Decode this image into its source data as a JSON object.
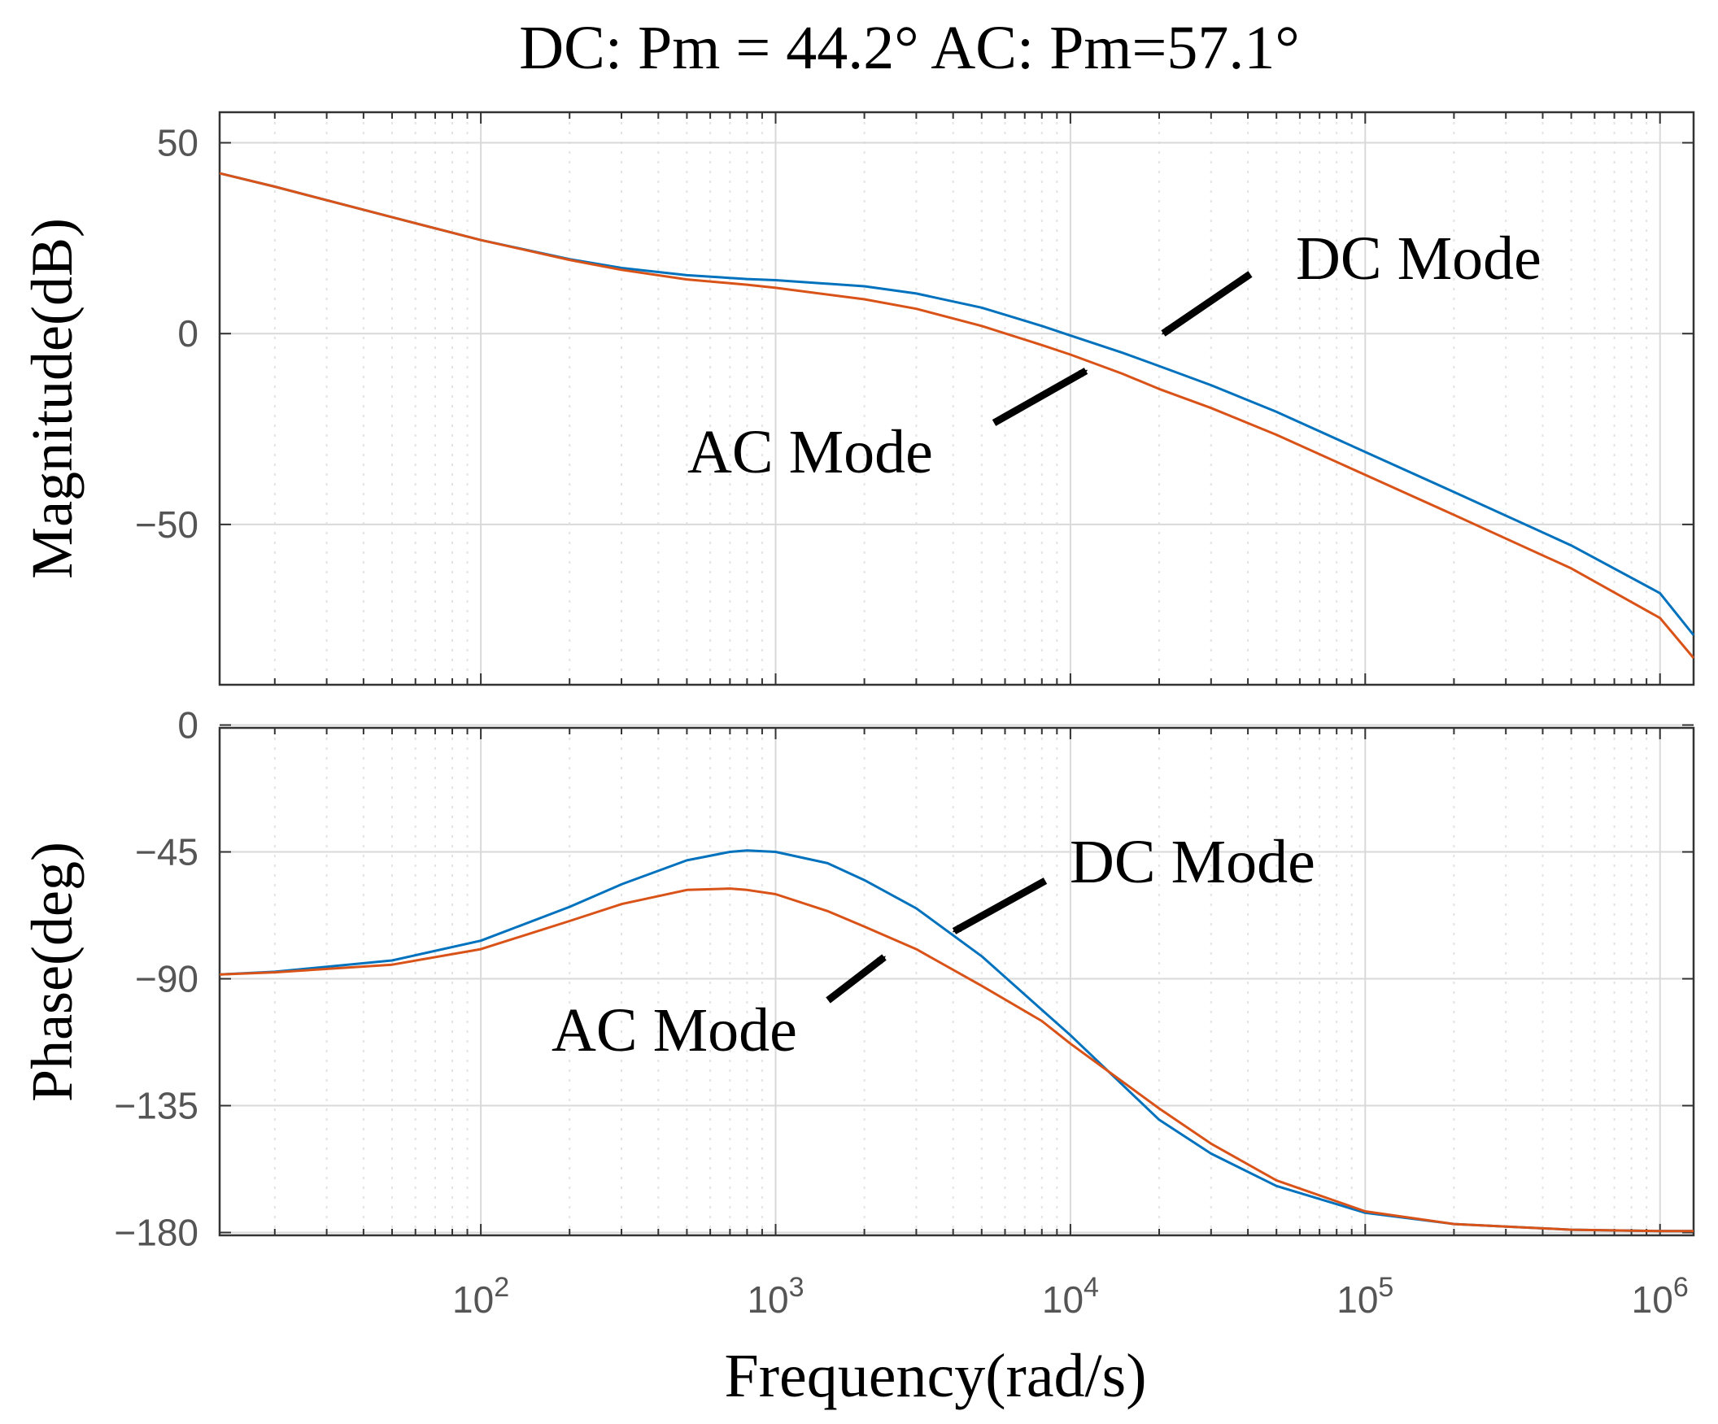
{
  "chart_data": {
    "type": "line",
    "title": "DC: Pm = 44.2°   AC: Pm=57.1°",
    "xlabel": "Frequency(rad/s)",
    "xscale": "log",
    "xlim": [
      13,
      1300000
    ],
    "x_tick_labels": [
      {
        "base": "10",
        "exp": "2"
      },
      {
        "base": "10",
        "exp": "3"
      },
      {
        "base": "10",
        "exp": "4"
      },
      {
        "base": "10",
        "exp": "5"
      },
      {
        "base": "10",
        "exp": "6"
      }
    ],
    "grid": true,
    "series_colors": {
      "DC Mode": "#0072BD",
      "AC Mode": "#D95319"
    },
    "panels": [
      {
        "name": "magnitude",
        "ylabel": "Magnitude(dB)",
        "ylim": [
          -92,
          58
        ],
        "yticks": [
          50,
          0,
          -50
        ],
        "ytick_labels": [
          "50",
          "0",
          "−50"
        ],
        "series": [
          {
            "name": "DC Mode",
            "x": [
              13,
              20,
              50,
              100,
              200,
              300,
              500,
              800,
              1000,
              2000,
              3000,
              5000,
              8000,
              10000,
              15000,
              20000,
              30000,
              50000,
              100000,
              200000,
              500000,
              1000000,
              1300000
            ],
            "y": [
              42,
              38.5,
              30.5,
              24.5,
              19.5,
              17.2,
              15.3,
              14.3,
              14.0,
              12.4,
              10.5,
              6.8,
              2.0,
              -0.5,
              -5.0,
              -8.5,
              -13.5,
              -20.5,
              -31.0,
              -41.5,
              -55.5,
              -68.0,
              -79.0
            ]
          },
          {
            "name": "AC Mode",
            "x": [
              13,
              20,
              50,
              100,
              200,
              300,
              500,
              800,
              1000,
              2000,
              3000,
              5000,
              8000,
              10000,
              15000,
              20000,
              30000,
              50000,
              100000,
              200000,
              500000,
              1000000,
              1300000
            ],
            "y": [
              42,
              38.5,
              30.5,
              24.5,
              19.3,
              16.7,
              14.2,
              12.8,
              12.0,
              9.0,
              6.5,
              2.0,
              -3.0,
              -5.5,
              -10.5,
              -14.5,
              -19.5,
              -26.5,
              -37.0,
              -47.5,
              -61.5,
              -74.5,
              -85.0
            ]
          }
        ],
        "annotations": [
          {
            "text": "DC Mode",
            "target": [
              17000,
              -0.5
            ]
          },
          {
            "text": "AC Mode",
            "target": [
              9700,
              -9.5
            ]
          }
        ]
      },
      {
        "name": "phase",
        "ylabel": "Phase(deg)",
        "ylim": [
          -181,
          -1
        ],
        "yticks": [
          0,
          -45,
          -90,
          -135,
          -180
        ],
        "ytick_labels": [
          "0",
          "−45",
          "−90",
          "−135",
          "−180"
        ],
        "series": [
          {
            "name": "DC Mode",
            "x": [
              13,
              20,
              50,
              100,
              200,
              300,
              500,
              700,
              800,
              1000,
              1500,
              2000,
              3000,
              5000,
              8000,
              10000,
              20000,
              30000,
              50000,
              100000,
              200000,
              500000,
              1000000,
              1300000
            ],
            "y": [
              -88.5,
              -87.5,
              -83.5,
              -76.5,
              -64.5,
              -56.5,
              -48.0,
              -45.0,
              -44.5,
              -45.0,
              -49.0,
              -55.0,
              -65.0,
              -82.0,
              -101.0,
              -110.0,
              -140.0,
              -152.0,
              -163.5,
              -173.0,
              -177.0,
              -179.0,
              -179.5,
              -179.5
            ]
          },
          {
            "name": "AC Mode",
            "x": [
              13,
              20,
              50,
              100,
              200,
              300,
              500,
              700,
              800,
              1000,
              1500,
              2000,
              3000,
              5000,
              8000,
              10000,
              20000,
              30000,
              50000,
              100000,
              200000,
              500000,
              1000000,
              1300000
            ],
            "y": [
              -88.5,
              -87.7,
              -85.0,
              -79.5,
              -69.5,
              -63.5,
              -58.5,
              -58.0,
              -58.5,
              -60.0,
              -66.0,
              -71.5,
              -79.5,
              -92.5,
              -105.0,
              -113.0,
              -136.0,
              -148.5,
              -161.5,
              -172.5,
              -177.0,
              -179.0,
              -179.5,
              -179.5
            ]
          }
        ],
        "annotations": [
          {
            "text": "DC Mode",
            "target": [
              3600,
              -72
            ]
          },
          {
            "text": "AC Mode",
            "target": [
              2400,
              -81
            ]
          }
        ]
      }
    ]
  }
}
